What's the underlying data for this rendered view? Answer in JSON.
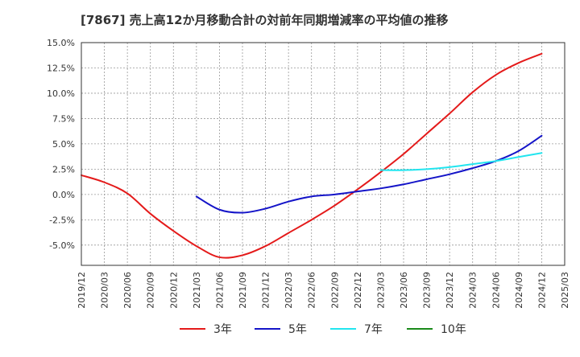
{
  "chart_data": {
    "type": "line",
    "title": "[7867]  売上高12か月移動合計の対前年同期増減率の平均値の推移",
    "ylim": [
      -7.0,
      15.0
    ],
    "y_ticks": [
      15.0,
      12.5,
      10.0,
      7.5,
      5.0,
      2.5,
      0.0,
      -2.5,
      -5.0
    ],
    "y_tick_labels": [
      "15.0%",
      "12.5%",
      "10.0%",
      "7.5%",
      "5.0%",
      "2.5%",
      "0.0%",
      "-2.5%",
      "-5.0%"
    ],
    "x_tick_labels": [
      "2019/12",
      "2020/03",
      "2020/06",
      "2020/09",
      "2020/12",
      "2021/03",
      "2021/06",
      "2021/09",
      "2021/12",
      "2022/03",
      "2022/06",
      "2022/09",
      "2022/12",
      "2023/03",
      "2023/06",
      "2023/09",
      "2023/12",
      "2024/03",
      "2024/06",
      "2024/09",
      "2024/12",
      "2025/03"
    ],
    "grid": true,
    "legend_position": "bottom",
    "series": [
      {
        "name": "3年",
        "color": "#e41a1a",
        "points": [
          [
            "2019/12",
            1.9
          ],
          [
            "2020/03",
            1.2
          ],
          [
            "2020/06",
            0.1
          ],
          [
            "2020/09",
            -1.9
          ],
          [
            "2020/12",
            -3.6
          ],
          [
            "2021/03",
            -5.1
          ],
          [
            "2021/06",
            -6.2
          ],
          [
            "2021/09",
            -6.0
          ],
          [
            "2021/12",
            -5.1
          ],
          [
            "2022/03",
            -3.8
          ],
          [
            "2022/06",
            -2.5
          ],
          [
            "2022/09",
            -1.1
          ],
          [
            "2022/12",
            0.5
          ],
          [
            "2023/03",
            2.2
          ],
          [
            "2023/06",
            4.0
          ],
          [
            "2023/09",
            6.0
          ],
          [
            "2023/12",
            8.0
          ],
          [
            "2024/03",
            10.1
          ],
          [
            "2024/06",
            11.8
          ],
          [
            "2024/09",
            13.0
          ],
          [
            "2024/12",
            13.9
          ]
        ]
      },
      {
        "name": "5年",
        "color": "#1414c8",
        "points": [
          [
            "2021/03",
            -0.2
          ],
          [
            "2021/06",
            -1.5
          ],
          [
            "2021/09",
            -1.8
          ],
          [
            "2021/12",
            -1.4
          ],
          [
            "2022/03",
            -0.7
          ],
          [
            "2022/06",
            -0.2
          ],
          [
            "2022/09",
            0.0
          ],
          [
            "2022/12",
            0.3
          ],
          [
            "2023/03",
            0.6
          ],
          [
            "2023/06",
            1.0
          ],
          [
            "2023/09",
            1.5
          ],
          [
            "2023/12",
            2.0
          ],
          [
            "2024/03",
            2.6
          ],
          [
            "2024/06",
            3.3
          ],
          [
            "2024/09",
            4.3
          ],
          [
            "2024/12",
            5.8
          ]
        ]
      },
      {
        "name": "7年",
        "color": "#22e5ef",
        "points": [
          [
            "2023/03",
            2.4
          ],
          [
            "2023/06",
            2.4
          ],
          [
            "2023/09",
            2.5
          ],
          [
            "2023/12",
            2.7
          ],
          [
            "2024/03",
            3.0
          ],
          [
            "2024/06",
            3.3
          ],
          [
            "2024/09",
            3.7
          ],
          [
            "2024/12",
            4.1
          ]
        ]
      },
      {
        "name": "10年",
        "color": "#1a8a1a",
        "points": []
      }
    ]
  }
}
